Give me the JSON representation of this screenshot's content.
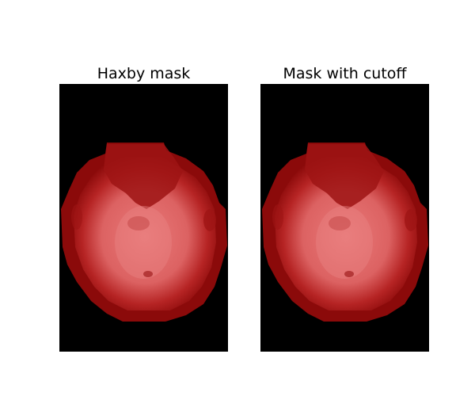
{
  "figure": {
    "panels": [
      {
        "title": "Haxby mask",
        "image_description": "axial brain slice with red mask overlay on black background"
      },
      {
        "title": "Mask with cutoff",
        "image_description": "axial brain slice with red mask overlay (cutoff applied) on black background"
      }
    ]
  },
  "colors": {
    "background": "#000000",
    "mask_edge": "#8b0a0a",
    "mask_mid": "#b01717",
    "mask_fill": "#e36a6a",
    "mask_highlight": "#f08a8a"
  }
}
